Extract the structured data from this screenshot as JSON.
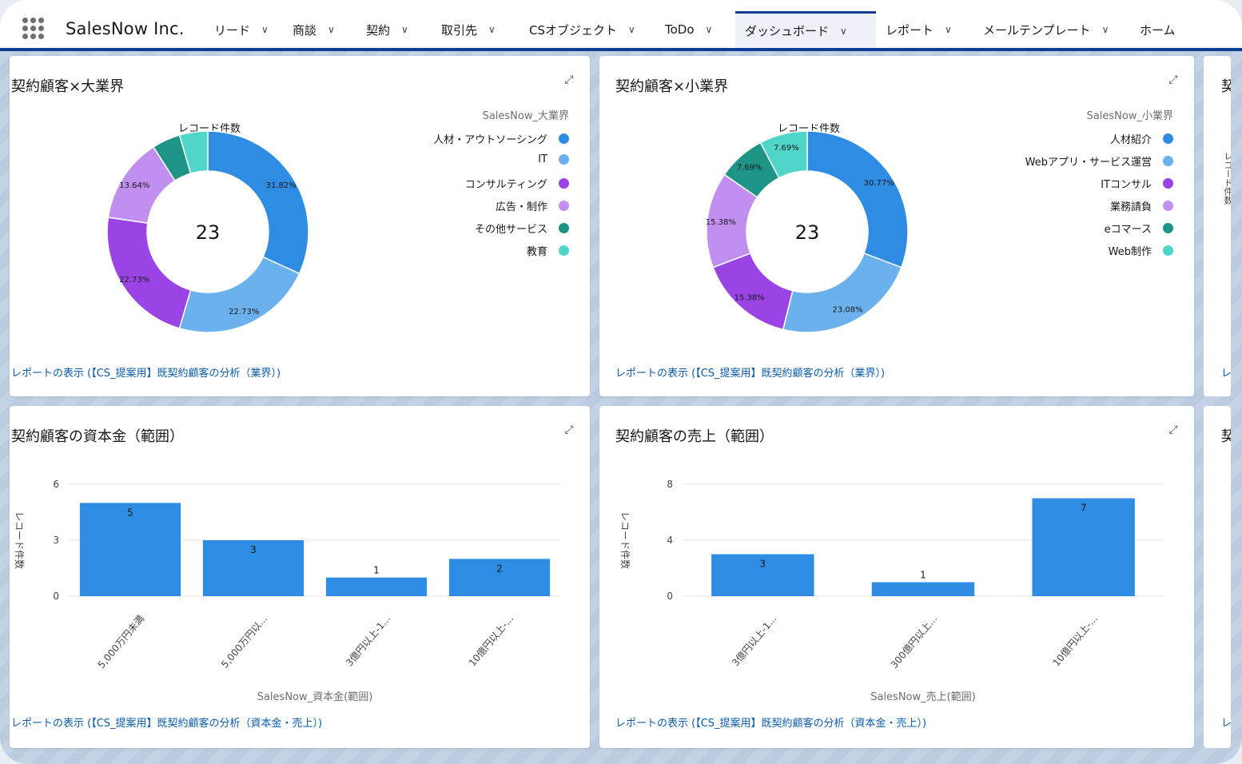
{
  "app": {
    "name": "SalesNow Inc."
  },
  "nav": {
    "tabs": [
      {
        "label": "リード",
        "active": false,
        "width": 98
      },
      {
        "label": "商談",
        "active": false,
        "width": 92
      },
      {
        "label": "契約",
        "active": false,
        "width": 94
      },
      {
        "label": "取引先",
        "active": false,
        "width": 110
      },
      {
        "label": "CSオブジェクト",
        "active": false,
        "width": 170
      },
      {
        "label": "ToDo",
        "active": false,
        "width": 100
      },
      {
        "label": "ダッシュボード",
        "active": true,
        "width": 176
      },
      {
        "label": "レポート",
        "active": false,
        "width": 122
      },
      {
        "label": "メールテンプレート",
        "active": false,
        "width": 196
      },
      {
        "label": "ホーム",
        "active": false,
        "width": 80
      }
    ]
  },
  "cards": {
    "donut1": {
      "title": "契約顧客×大業界",
      "chart_label": "レコード件数",
      "total": "23",
      "legend_title": "SalesNow_大業界",
      "report_link": "レポートの表示 (【CS_提案用】既契約顧客の分析（業界）)"
    },
    "donut2": {
      "title": "契約顧客×小業界",
      "chart_label": "レコード件数",
      "total": "23",
      "legend_title": "SalesNow_小業界",
      "report_link": "レポートの表示 (【CS_提案用】既契約顧客の分析（業界）)"
    },
    "bar1": {
      "title": "契約顧客の資本金（範囲）",
      "ylabel": "レコード件数",
      "xlabel": "SalesNow_資本金(範囲)",
      "report_link": "レポートの表示 (【CS_提案用】既契約顧客の分析（資本金・売上）)"
    },
    "bar2": {
      "title": "契約顧客の売上（範囲）",
      "ylabel": "レコード件数",
      "xlabel": "SalesNow_売上(範囲)",
      "report_link": "レポートの表示 (【CS_提案用】既契約顧客の分析（資本金・売上）)"
    },
    "edge": {
      "title_top": "契",
      "title_bottom": "契",
      "link_top": "レ",
      "link_bottom": "レ",
      "axis_vertical": "レコード件数"
    }
  },
  "icons": {
    "expand": "expand-icon",
    "chevron": "chevron-down-icon",
    "app_launcher": "app-launcher-icon"
  },
  "chart_data": [
    {
      "type": "pie",
      "donut": true,
      "title": "契約顧客×大業界",
      "legend_title": "SalesNow_大業界",
      "center_value": "23",
      "slices": [
        {
          "name": "人材・アウトソーシング",
          "value": 31.82,
          "label": "31.82%",
          "color": "#2e8ce3"
        },
        {
          "name": "IT",
          "value": 22.73,
          "label": "22.73%",
          "color": "#6bb1ee"
        },
        {
          "name": "コンサルティング",
          "value": 22.73,
          "label": "22.73%",
          "color": "#9b44e6"
        },
        {
          "name": "広告・制作",
          "value": 13.64,
          "label": "13.64%",
          "color": "#c18ff0"
        },
        {
          "name": "その他サービス",
          "value": 4.54,
          "label": "",
          "color": "#1e9486"
        },
        {
          "name": "教育",
          "value": 4.54,
          "label": "",
          "color": "#4fd6c8"
        }
      ]
    },
    {
      "type": "pie",
      "donut": true,
      "title": "契約顧客×小業界",
      "legend_title": "SalesNow_小業界",
      "center_value": "23",
      "slices": [
        {
          "name": "人材紹介",
          "value": 30.77,
          "label": "30.77%",
          "color": "#2e8ce3"
        },
        {
          "name": "Webアプリ・サービス運営",
          "value": 23.08,
          "label": "23.08%",
          "color": "#6bb1ee"
        },
        {
          "name": "ITコンサル",
          "value": 15.38,
          "label": "15.38%",
          "color": "#9b44e6"
        },
        {
          "name": "業務請負",
          "value": 15.38,
          "label": "15.38%",
          "color": "#c18ff0"
        },
        {
          "name": "eコマース",
          "value": 7.69,
          "label": "7.69%",
          "color": "#1e9486"
        },
        {
          "name": "Web制作",
          "value": 7.69,
          "label": "7.69%",
          "color": "#4fd6c8"
        }
      ]
    },
    {
      "type": "bar",
      "title": "契約顧客の資本金（範囲）",
      "xlabel": "SalesNow_資本金(範囲)",
      "ylabel": "レコード件数",
      "categories": [
        "5,000万円未満",
        "5,000万円以...",
        "3億円以上-1...",
        "10億円以上-..."
      ],
      "values": [
        5,
        3,
        1,
        2
      ],
      "yticks": [
        0,
        3,
        6
      ],
      "ylim": [
        0,
        6
      ],
      "color": "#2e8ce3"
    },
    {
      "type": "bar",
      "title": "契約顧客の売上（範囲）",
      "xlabel": "SalesNow_売上(範囲)",
      "ylabel": "レコード件数",
      "categories": [
        "3億円以上-1...",
        "300億円以上...",
        "10億円以上-..."
      ],
      "values": [
        3,
        1,
        7
      ],
      "yticks": [
        0,
        4,
        8
      ],
      "ylim": [
        0,
        8
      ],
      "color": "#2e8ce3"
    }
  ]
}
